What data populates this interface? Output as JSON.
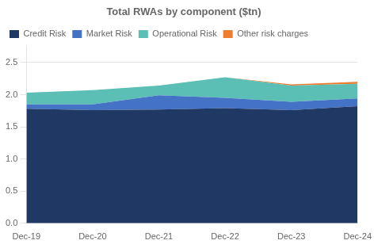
{
  "chart_data": {
    "type": "area",
    "title": "Total RWAs by component ($tn)",
    "categories": [
      "Dec-19",
      "Dec-20",
      "Dec-21",
      "Dec-22",
      "Dec-23",
      "Dec-24"
    ],
    "series": [
      {
        "name": "Credit Risk",
        "color": "#1f3864",
        "values": [
          1.78,
          1.76,
          1.77,
          1.79,
          1.76,
          1.82
        ]
      },
      {
        "name": "Market Risk",
        "color": "#4472c4",
        "values": [
          0.07,
          0.09,
          0.22,
          0.16,
          0.13,
          0.12
        ]
      },
      {
        "name": "Operational Risk",
        "color": "#5bbfb5",
        "values": [
          0.18,
          0.22,
          0.15,
          0.32,
          0.25,
          0.23
        ]
      },
      {
        "name": "Other risk charges",
        "color": "#ed7d31",
        "values": [
          0.0,
          0.0,
          0.0,
          0.0,
          0.02,
          0.03
        ]
      }
    ],
    "stacked": true,
    "ylim": [
      0.0,
      2.75
    ],
    "yticks": [
      {
        "value": 0.0,
        "label": "0.0"
      },
      0.5,
      {
        "value": 1.0,
        "label": "1.0"
      },
      1.5,
      {
        "value": 2.0,
        "label": "2.0"
      },
      2.5
    ],
    "grid": true,
    "legend": "top"
  }
}
